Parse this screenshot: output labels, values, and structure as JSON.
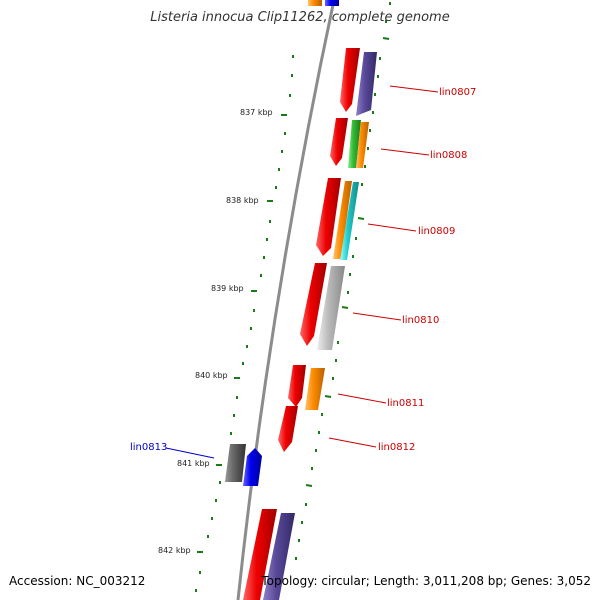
{
  "title": "Listeria innocua Clip11262, complete genome",
  "footer": {
    "accession": "Accession: NC_003212",
    "summary": "Topology: circular; Length: 3,011,208 bp; Genes: 3,052"
  },
  "colors": {
    "backbone": "#8c8c8c",
    "tick": "#1a7a1a",
    "label_red": "#cc0000",
    "label_blue": "#0000cc",
    "red": "#ee0000",
    "purple": "#5a4a9a",
    "orange": "#ff8c00",
    "green": "#33bb33",
    "cyan": "#22cccc",
    "grey": "#bbbbbb",
    "darkgrey": "#666666",
    "blue": "#0000ee"
  },
  "kbp_labels": [
    {
      "name": "837",
      "text": "837 kbp"
    },
    {
      "name": "838",
      "text": "838 kbp"
    },
    {
      "name": "839",
      "text": "839 kbp"
    },
    {
      "name": "840",
      "text": "840 kbp"
    },
    {
      "name": "841",
      "text": "841 kbp"
    },
    {
      "name": "842",
      "text": "842 kbp"
    }
  ],
  "genes": [
    {
      "name": "lin0807",
      "label": "lin0807",
      "color": "red"
    },
    {
      "name": "lin0808",
      "label": "lin0808",
      "color": "red"
    },
    {
      "name": "lin0809",
      "label": "lin0809",
      "color": "red"
    },
    {
      "name": "lin0810",
      "label": "lin0810",
      "color": "red"
    },
    {
      "name": "lin0811",
      "label": "lin0811",
      "color": "red"
    },
    {
      "name": "lin0812",
      "label": "lin0812",
      "color": "red"
    },
    {
      "name": "lin0813",
      "label": "lin0813",
      "color": "blue"
    }
  ]
}
